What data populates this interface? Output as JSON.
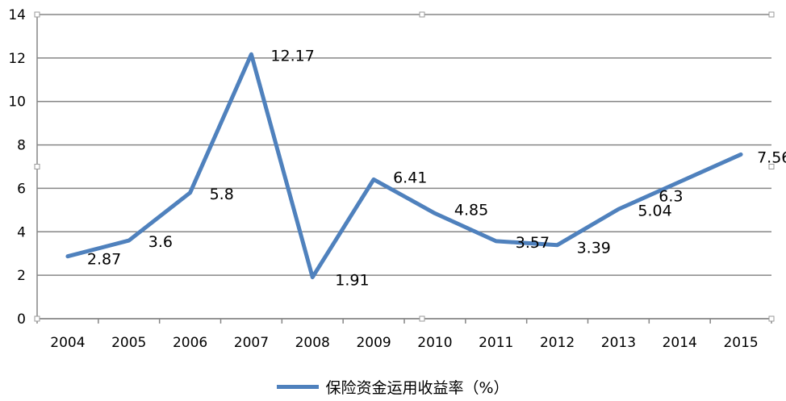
{
  "chart_data": {
    "type": "line",
    "categories": [
      "2004",
      "2005",
      "2006",
      "2007",
      "2008",
      "2009",
      "2010",
      "2011",
      "2012",
      "2013",
      "2014",
      "2015"
    ],
    "series": [
      {
        "name": "保险资金运用收益率（%）",
        "values": [
          2.87,
          3.6,
          5.8,
          12.17,
          1.91,
          6.41,
          4.85,
          3.57,
          3.39,
          5.04,
          6.3,
          7.56
        ],
        "data_labels": [
          "2.87",
          "3.6",
          "5.8",
          "12.17",
          "1.91",
          "6.41",
          "4.85",
          "3.57",
          "3.39",
          "5.04",
          "6.3",
          "7.56"
        ]
      }
    ],
    "yticks": [
      "0",
      "2",
      "4",
      "6",
      "8",
      "10",
      "12",
      "14"
    ],
    "ylim": [
      0,
      14
    ],
    "grid": true,
    "legend_position": "bottom",
    "colors": {
      "series": "#4f81bd",
      "grid": "#868686"
    }
  }
}
